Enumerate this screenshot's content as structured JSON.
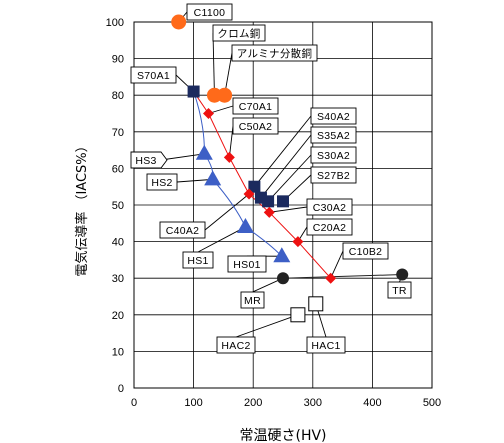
{
  "chart_data": {
    "type": "scatter",
    "xlabel": "常温硬さ(HV)",
    "ylabel": "電気伝導率 （IACS%）",
    "xlim": [
      0,
      500
    ],
    "ylim": [
      0,
      100
    ],
    "x_ticks": [
      "0",
      "100",
      "200",
      "300",
      "400",
      "500"
    ],
    "y_ticks": [
      "0",
      "10",
      "20",
      "30",
      "40",
      "50",
      "60",
      "70",
      "80",
      "90",
      "100"
    ],
    "grid": true,
    "colors": {
      "orange": "#ff6a1a",
      "red": "#ee1111",
      "navy": "#1b2a5e",
      "blue": "#3d5fc6",
      "black": "#222222",
      "white": "#ffffff"
    },
    "series": [
      {
        "marker": "circle-orange",
        "points": [
          {
            "x": 75,
            "y": 100,
            "label": "C1100"
          },
          {
            "x": 135,
            "y": 80,
            "label": "クロム銅"
          },
          {
            "x": 152,
            "y": 80,
            "label": "アルミナ分散銅"
          }
        ]
      },
      {
        "marker": "square-navy",
        "points": [
          {
            "x": 100,
            "y": 81,
            "label": "S70A1"
          },
          {
            "x": 202,
            "y": 55,
            "label": "S40A2"
          },
          {
            "x": 213,
            "y": 52,
            "label": "S35A2"
          },
          {
            "x": 225,
            "y": 51,
            "label": "S30A2"
          },
          {
            "x": 250,
            "y": 51,
            "label": "S27B2"
          }
        ]
      },
      {
        "marker": "diamond-red",
        "points": [
          {
            "x": 125,
            "y": 75,
            "label": "C70A1"
          },
          {
            "x": 160,
            "y": 63,
            "label": "C50A2"
          },
          {
            "x": 193,
            "y": 53,
            "label": "C40A2"
          },
          {
            "x": 227,
            "y": 48,
            "label": "C30A2"
          },
          {
            "x": 275,
            "y": 40,
            "label": "C20A2"
          },
          {
            "x": 330,
            "y": 30,
            "label": "C10B2"
          }
        ]
      },
      {
        "marker": "triangle-blue",
        "points": [
          {
            "x": 118,
            "y": 64,
            "label": "HS3"
          },
          {
            "x": 132,
            "y": 57,
            "label": "HS2"
          },
          {
            "x": 187,
            "y": 44,
            "label": "HS1"
          },
          {
            "x": 248,
            "y": 36,
            "label": "HS01"
          }
        ]
      },
      {
        "marker": "circle-black",
        "points": [
          {
            "x": 250,
            "y": 30,
            "label": "MR"
          },
          {
            "x": 450,
            "y": 31,
            "label": "TR"
          }
        ]
      },
      {
        "marker": "square-white",
        "points": [
          {
            "x": 275,
            "y": 20,
            "label": "HAC2"
          },
          {
            "x": 305,
            "y": 23,
            "label": "HAC1"
          }
        ]
      }
    ]
  }
}
